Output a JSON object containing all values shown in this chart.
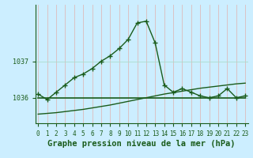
{
  "title": "Graphe pression niveau de la mer (hPa)",
  "background_color": "#cceeff",
  "line_color": "#1a5c1a",
  "grid_color_v": "#ddbbbb",
  "grid_color_h": "#aaddcc",
  "x_hours": [
    0,
    1,
    2,
    3,
    4,
    5,
    6,
    7,
    8,
    9,
    10,
    11,
    12,
    13,
    14,
    15,
    16,
    17,
    18,
    19,
    20,
    21,
    22,
    23
  ],
  "pressure_main": [
    1036.1,
    1035.95,
    1036.15,
    1036.35,
    1036.55,
    1036.65,
    1036.8,
    1037.0,
    1037.15,
    1037.35,
    1037.6,
    1038.05,
    1038.1,
    1037.5,
    1036.35,
    1036.15,
    1036.25,
    1036.15,
    1036.05,
    1036.0,
    1036.05,
    1036.25,
    1036.0,
    1036.05
  ],
  "pressure_flat": [
    1036.0,
    1036.0,
    1036.0,
    1036.0,
    1036.0,
    1036.0,
    1036.0,
    1036.0,
    1036.0,
    1036.0,
    1036.0,
    1036.0,
    1036.0,
    1036.0,
    1036.0,
    1036.0,
    1036.0,
    1036.0,
    1036.0,
    1036.0,
    1036.0,
    1036.0,
    1036.0,
    1036.0
  ],
  "pressure_rising": [
    1035.55,
    1035.57,
    1035.59,
    1035.62,
    1035.65,
    1035.68,
    1035.72,
    1035.76,
    1035.8,
    1035.85,
    1035.9,
    1035.95,
    1036.0,
    1036.05,
    1036.1,
    1036.14,
    1036.18,
    1036.22,
    1036.26,
    1036.29,
    1036.32,
    1036.35,
    1036.38,
    1036.4
  ],
  "yticks": [
    1036,
    1037
  ],
  "ylim": [
    1035.3,
    1038.55
  ],
  "title_fontsize": 7.5,
  "tick_fontsize": 6,
  "xlabel_fontsize": 7.5
}
